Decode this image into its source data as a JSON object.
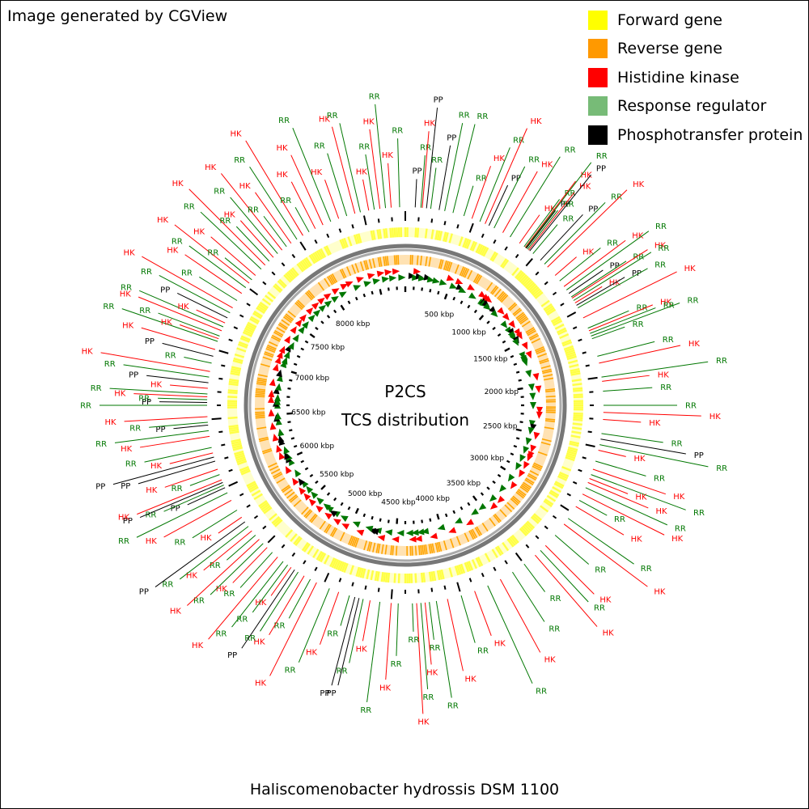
{
  "header_note": "Image generated by CGView",
  "footer_title": "Haliscomenobacter hydrossis DSM 1100",
  "center_title": {
    "line1": "P2CS",
    "line2": "TCS distribution"
  },
  "legend": [
    {
      "label": "Forward gene",
      "color": "#ffff00"
    },
    {
      "label": "Reverse gene",
      "color": "#ff9900"
    },
    {
      "label": "Histidine kinase",
      "color": "#ff0000"
    },
    {
      "label": "Response regulator",
      "color": "#77bb77"
    },
    {
      "label": "Phosphotransfer protein",
      "color": "#000000"
    }
  ],
  "colors": {
    "HK": "#ff0000",
    "RR": "#007700",
    "PP": "#000000",
    "backbone_outer": "#777777",
    "backbone_inner": "#aaaaaa",
    "forward_gene": "#ffff44",
    "reverse_gene": "#ffa500"
  },
  "genome_size_kbp": 8800,
  "kbp_ticks": [
    {
      "kbp": 500,
      "label": "500 kbp"
    },
    {
      "kbp": 1000,
      "label": "1000 kbp"
    },
    {
      "kbp": 1500,
      "label": "1500 kbp"
    },
    {
      "kbp": 2000,
      "label": "2000 kbp"
    },
    {
      "kbp": 2500,
      "label": "2500 kbp"
    },
    {
      "kbp": 3000,
      "label": "3000 kbp"
    },
    {
      "kbp": 3500,
      "label": "3500 kbp"
    },
    {
      "kbp": 4000,
      "label": "4000 kbp"
    },
    {
      "kbp": 4500,
      "label": "4500 kbp"
    },
    {
      "kbp": 5000,
      "label": "5000 kbp"
    },
    {
      "kbp": 5500,
      "label": "5500 kbp"
    },
    {
      "kbp": 6000,
      "label": "6000 kbp"
    },
    {
      "kbp": 6500,
      "label": "6500 kbp"
    },
    {
      "kbp": 7000,
      "label": "7000 kbp"
    },
    {
      "kbp": 7500,
      "label": "7500 kbp"
    },
    {
      "kbp": 8000,
      "label": "8000 kbp"
    }
  ],
  "features": [
    {
      "kbp": 70,
      "type": "PP"
    },
    {
      "kbp": 110,
      "type": "RR"
    },
    {
      "kbp": 120,
      "type": "HK"
    },
    {
      "kbp": 150,
      "type": "PP"
    },
    {
      "kbp": 180,
      "type": "RR"
    },
    {
      "kbp": 240,
      "type": "PP"
    },
    {
      "kbp": 280,
      "type": "RR"
    },
    {
      "kbp": 340,
      "type": "RR"
    },
    {
      "kbp": 420,
      "type": "RR"
    },
    {
      "kbp": 480,
      "type": "HK"
    },
    {
      "kbp": 540,
      "type": "RR"
    },
    {
      "kbp": 580,
      "type": "HK"
    },
    {
      "kbp": 610,
      "type": "PP"
    },
    {
      "kbp": 650,
      "type": "RR"
    },
    {
      "kbp": 720,
      "type": "HK"
    },
    {
      "kbp": 780,
      "type": "RR"
    },
    {
      "kbp": 860,
      "type": "HK"
    },
    {
      "kbp": 900,
      "type": "RR"
    },
    {
      "kbp": 910,
      "type": "HK"
    },
    {
      "kbp": 915,
      "type": "RR"
    },
    {
      "kbp": 920,
      "type": "PP"
    },
    {
      "kbp": 930,
      "type": "RR"
    },
    {
      "kbp": 940,
      "type": "HK"
    },
    {
      "kbp": 950,
      "type": "PP"
    },
    {
      "kbp": 980,
      "type": "RR"
    },
    {
      "kbp": 1050,
      "type": "PP"
    },
    {
      "kbp": 1090,
      "type": "RR"
    },
    {
      "kbp": 1120,
      "type": "HK"
    },
    {
      "kbp": 1200,
      "type": "HK"
    },
    {
      "kbp": 1250,
      "type": "RR"
    },
    {
      "kbp": 1300,
      "type": "HK"
    },
    {
      "kbp": 1330,
      "type": "RR"
    },
    {
      "kbp": 1360,
      "type": "PP"
    },
    {
      "kbp": 1390,
      "type": "RR"
    },
    {
      "kbp": 1400,
      "type": "HK"
    },
    {
      "kbp": 1420,
      "type": "RR"
    },
    {
      "kbp": 1440,
      "type": "HK"
    },
    {
      "kbp": 1460,
      "type": "PP"
    },
    {
      "kbp": 1480,
      "type": "RR"
    },
    {
      "kbp": 1560,
      "type": "HK"
    },
    {
      "kbp": 1640,
      "type": "RR"
    },
    {
      "kbp": 1660,
      "type": "HK"
    },
    {
      "kbp": 1680,
      "type": "RR"
    },
    {
      "kbp": 1700,
      "type": "RR"
    },
    {
      "kbp": 1720,
      "type": "RR"
    },
    {
      "kbp": 1850,
      "type": "RR"
    },
    {
      "kbp": 1900,
      "type": "HK"
    },
    {
      "kbp": 2000,
      "type": "RR"
    },
    {
      "kbp": 2030,
      "type": "HK"
    },
    {
      "kbp": 2100,
      "type": "RR"
    },
    {
      "kbp": 2200,
      "type": "RR"
    },
    {
      "kbp": 2250,
      "type": "HK"
    },
    {
      "kbp": 2300,
      "type": "HK"
    },
    {
      "kbp": 2400,
      "type": "RR"
    },
    {
      "kbp": 2440,
      "type": "PP"
    },
    {
      "kbp": 2480,
      "type": "RR"
    },
    {
      "kbp": 2520,
      "type": "HK"
    },
    {
      "kbp": 2600,
      "type": "RR"
    },
    {
      "kbp": 2660,
      "type": "HK"
    },
    {
      "kbp": 2700,
      "type": "RR"
    },
    {
      "kbp": 2730,
      "type": "HK"
    },
    {
      "kbp": 2760,
      "type": "HK"
    },
    {
      "kbp": 2800,
      "type": "RR"
    },
    {
      "kbp": 2850,
      "type": "HK"
    },
    {
      "kbp": 2900,
      "type": "RR"
    },
    {
      "kbp": 2950,
      "type": "HK"
    },
    {
      "kbp": 3050,
      "type": "RR"
    },
    {
      "kbp": 3100,
      "type": "HK"
    },
    {
      "kbp": 3200,
      "type": "RR"
    },
    {
      "kbp": 3300,
      "type": "HK"
    },
    {
      "kbp": 3350,
      "type": "RR"
    },
    {
      "kbp": 3400,
      "type": "HK"
    },
    {
      "kbp": 3500,
      "type": "RR"
    },
    {
      "kbp": 3600,
      "type": "RR"
    },
    {
      "kbp": 3700,
      "type": "HK"
    },
    {
      "kbp": 3800,
      "type": "RR"
    },
    {
      "kbp": 3900,
      "type": "HK"
    },
    {
      "kbp": 4000,
      "type": "RR"
    },
    {
      "kbp": 4100,
      "type": "HK"
    },
    {
      "kbp": 4180,
      "type": "RR"
    },
    {
      "kbp": 4230,
      "type": "RR"
    },
    {
      "kbp": 4260,
      "type": "HK"
    },
    {
      "kbp": 4290,
      "type": "RR"
    },
    {
      "kbp": 4320,
      "type": "HK"
    },
    {
      "kbp": 4350,
      "type": "RR"
    },
    {
      "kbp": 4450,
      "type": "RR"
    },
    {
      "kbp": 4500,
      "type": "HK"
    },
    {
      "kbp": 4580,
      "type": "RR"
    },
    {
      "kbp": 4650,
      "type": "HK"
    },
    {
      "kbp": 4700,
      "type": "RR"
    },
    {
      "kbp": 4730,
      "type": "PP"
    },
    {
      "kbp": 4760,
      "type": "PP"
    },
    {
      "kbp": 4800,
      "type": "RR"
    },
    {
      "kbp": 4880,
      "type": "HK"
    },
    {
      "kbp": 4950,
      "type": "RR"
    },
    {
      "kbp": 5050,
      "type": "HK"
    },
    {
      "kbp": 5100,
      "type": "RR"
    },
    {
      "kbp": 5150,
      "type": "HK"
    },
    {
      "kbp": 5200,
      "type": "RR"
    },
    {
      "kbp": 5230,
      "type": "PP"
    },
    {
      "kbp": 5260,
      "type": "HK"
    },
    {
      "kbp": 5290,
      "type": "RR"
    },
    {
      "kbp": 5330,
      "type": "RR"
    },
    {
      "kbp": 5380,
      "type": "HK"
    },
    {
      "kbp": 5430,
      "type": "RR"
    },
    {
      "kbp": 5480,
      "type": "HK"
    },
    {
      "kbp": 5520,
      "type": "RR"
    },
    {
      "kbp": 5560,
      "type": "HK"
    },
    {
      "kbp": 5600,
      "type": "RR"
    },
    {
      "kbp": 5640,
      "type": "HK"
    },
    {
      "kbp": 5680,
      "type": "RR"
    },
    {
      "kbp": 5720,
      "type": "PP"
    },
    {
      "kbp": 5760,
      "type": "HK"
    },
    {
      "kbp": 5820,
      "type": "RR"
    },
    {
      "kbp": 5900,
      "type": "HK"
    },
    {
      "kbp": 5960,
      "type": "RR"
    },
    {
      "kbp": 6000,
      "type": "PP"
    },
    {
      "kbp": 6020,
      "type": "RR"
    },
    {
      "kbp": 6040,
      "type": "PP"
    },
    {
      "kbp": 6060,
      "type": "HK"
    },
    {
      "kbp": 6100,
      "type": "RR"
    },
    {
      "kbp": 6140,
      "type": "HK"
    },
    {
      "kbp": 6200,
      "type": "PP"
    },
    {
      "kbp": 6230,
      "type": "PP"
    },
    {
      "kbp": 6260,
      "type": "HK"
    },
    {
      "kbp": 6300,
      "type": "RR"
    },
    {
      "kbp": 6380,
      "type": "HK"
    },
    {
      "kbp": 6420,
      "type": "RR"
    },
    {
      "kbp": 6460,
      "type": "PP"
    },
    {
      "kbp": 6480,
      "type": "RR"
    },
    {
      "kbp": 6520,
      "type": "HK"
    },
    {
      "kbp": 6600,
      "type": "RR"
    },
    {
      "kbp": 6620,
      "type": "PP"
    },
    {
      "kbp": 6640,
      "type": "RR"
    },
    {
      "kbp": 6660,
      "type": "HK"
    },
    {
      "kbp": 6680,
      "type": "RR"
    },
    {
      "kbp": 6720,
      "type": "HK"
    },
    {
      "kbp": 6760,
      "type": "PP"
    },
    {
      "kbp": 6800,
      "type": "RR"
    },
    {
      "kbp": 6840,
      "type": "HK"
    },
    {
      "kbp": 6900,
      "type": "RR"
    },
    {
      "kbp": 6950,
      "type": "PP"
    },
    {
      "kbp": 7000,
      "type": "HK"
    },
    {
      "kbp": 7060,
      "type": "RR"
    },
    {
      "kbp": 7080,
      "type": "HK"
    },
    {
      "kbp": 7100,
      "type": "RR"
    },
    {
      "kbp": 7140,
      "type": "HK"
    },
    {
      "kbp": 7170,
      "type": "RR"
    },
    {
      "kbp": 7200,
      "type": "HK"
    },
    {
      "kbp": 7240,
      "type": "PP"
    },
    {
      "kbp": 7280,
      "type": "RR"
    },
    {
      "kbp": 7320,
      "type": "HK"
    },
    {
      "kbp": 7380,
      "type": "RR"
    },
    {
      "kbp": 7440,
      "type": "HK"
    },
    {
      "kbp": 7490,
      "type": "RR"
    },
    {
      "kbp": 7530,
      "type": "HK"
    },
    {
      "kbp": 7560,
      "type": "RR"
    },
    {
      "kbp": 7600,
      "type": "HK"
    },
    {
      "kbp": 7660,
      "type": "RR"
    },
    {
      "kbp": 7700,
      "type": "HK"
    },
    {
      "kbp": 7740,
      "type": "RR"
    },
    {
      "kbp": 7780,
      "type": "HK"
    },
    {
      "kbp": 7820,
      "type": "RR"
    },
    {
      "kbp": 7860,
      "type": "HK"
    },
    {
      "kbp": 7900,
      "type": "RR"
    },
    {
      "kbp": 7940,
      "type": "HK"
    },
    {
      "kbp": 7990,
      "type": "RR"
    },
    {
      "kbp": 8040,
      "type": "HK"
    },
    {
      "kbp": 8090,
      "type": "RR"
    },
    {
      "kbp": 8140,
      "type": "HK"
    },
    {
      "kbp": 8200,
      "type": "HK"
    },
    {
      "kbp": 8260,
      "type": "RR"
    },
    {
      "kbp": 8320,
      "type": "HK"
    },
    {
      "kbp": 8380,
      "type": "RR"
    },
    {
      "kbp": 8440,
      "type": "HK"
    },
    {
      "kbp": 8480,
      "type": "RR"
    },
    {
      "kbp": 8540,
      "type": "HK"
    },
    {
      "kbp": 8580,
      "type": "RR"
    },
    {
      "kbp": 8620,
      "type": "HK"
    },
    {
      "kbp": 8660,
      "type": "RR"
    },
    {
      "kbp": 8700,
      "type": "HK"
    },
    {
      "kbp": 8760,
      "type": "RR"
    }
  ]
}
